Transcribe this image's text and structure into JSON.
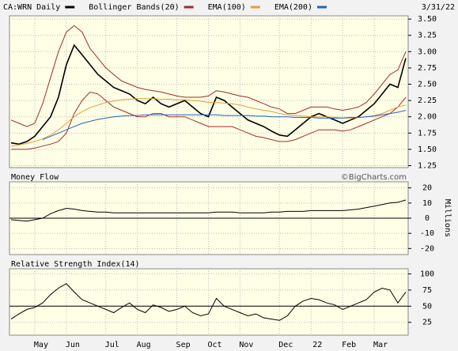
{
  "chart_data": [
    {
      "type": "line",
      "date": "3/31/22",
      "note": "©BigCharts.com",
      "categories": [
        null,
        null,
        null,
        "May",
        null,
        null,
        null,
        "Jun",
        null,
        null,
        null,
        null,
        "Jul",
        null,
        null,
        null,
        "Aug",
        null,
        null,
        null,
        null,
        "Sep",
        null,
        null,
        null,
        "Oct",
        null,
        null,
        null,
        "Nov",
        null,
        null,
        null,
        null,
        "Dec",
        null,
        null,
        null,
        "22",
        null,
        null,
        null,
        "Feb",
        null,
        null,
        null,
        "Mar",
        null,
        null,
        null,
        null
      ],
      "ylim": [
        1.22,
        3.55
      ],
      "yticks": [
        {
          "value": 1.25,
          "label": "1.25"
        },
        {
          "value": 1.5,
          "label": "1.50"
        },
        {
          "value": 1.75,
          "label": "1.75"
        },
        {
          "value": 2,
          "label": "2.00"
        },
        {
          "value": 2.25,
          "label": "2.25"
        },
        {
          "value": 2.5,
          "label": "2.50"
        },
        {
          "value": 2.75,
          "label": "2.75"
        },
        {
          "value": 3,
          "label": "3.00"
        },
        {
          "value": 3.25,
          "label": "3.25"
        },
        {
          "value": 3.5,
          "label": "3.50"
        }
      ],
      "grid": true,
      "series": [
        {
          "name": "CA:WRN Daily",
          "color": "#000000",
          "values": [
            1.6,
            1.58,
            1.62,
            1.7,
            1.85,
            2.0,
            2.3,
            2.8,
            3.1,
            2.95,
            2.8,
            2.65,
            2.55,
            2.45,
            2.4,
            2.35,
            2.25,
            2.2,
            2.3,
            2.2,
            2.15,
            2.2,
            2.25,
            2.15,
            2.05,
            2.0,
            2.3,
            2.25,
            2.15,
            2.05,
            1.95,
            1.9,
            1.85,
            1.78,
            1.72,
            1.7,
            1.8,
            1.9,
            2.0,
            2.05,
            2.0,
            1.95,
            1.9,
            1.95,
            2.0,
            2.1,
            2.2,
            2.35,
            2.5,
            2.45,
            2.9
          ]
        },
        {
          "name": "Bollinger Bands(20)",
          "color": "#a52a2a",
          "values": [
            1.95,
            1.9,
            1.85,
            1.9,
            2.2,
            2.6,
            3.0,
            3.3,
            3.4,
            3.3,
            3.05,
            2.9,
            2.75,
            2.65,
            2.55,
            2.5,
            2.45,
            2.42,
            2.4,
            2.38,
            2.35,
            2.32,
            2.3,
            2.3,
            2.3,
            2.32,
            2.4,
            2.38,
            2.35,
            2.32,
            2.3,
            2.25,
            2.2,
            2.15,
            2.12,
            2.05,
            2.05,
            2.1,
            2.15,
            2.15,
            2.15,
            2.12,
            2.1,
            2.12,
            2.15,
            2.22,
            2.35,
            2.5,
            2.65,
            2.72,
            3.0
          ],
          "values_lower": [
            1.5,
            1.5,
            1.5,
            1.52,
            1.55,
            1.58,
            1.62,
            1.75,
            2.05,
            2.25,
            2.38,
            2.35,
            2.25,
            2.15,
            2.1,
            2.05,
            2.0,
            2.0,
            2.05,
            2.05,
            2.0,
            2.0,
            2.0,
            1.95,
            1.9,
            1.85,
            1.85,
            1.85,
            1.85,
            1.8,
            1.75,
            1.7,
            1.68,
            1.65,
            1.62,
            1.62,
            1.65,
            1.7,
            1.75,
            1.8,
            1.8,
            1.8,
            1.78,
            1.8,
            1.85,
            1.9,
            1.95,
            2.0,
            2.05,
            2.15,
            2.3
          ]
        },
        {
          "name": "EMA(100)",
          "color": "#e0a040",
          "values": [
            1.55,
            1.57,
            1.59,
            1.62,
            1.66,
            1.72,
            1.8,
            1.9,
            2.0,
            2.08,
            2.14,
            2.18,
            2.22,
            2.24,
            2.26,
            2.27,
            2.28,
            2.28,
            2.28,
            2.27,
            2.27,
            2.26,
            2.26,
            2.25,
            2.24,
            2.22,
            2.22,
            2.21,
            2.2,
            2.18,
            2.15,
            2.12,
            2.1,
            2.08,
            2.05,
            2.03,
            2.02,
            2.01,
            2.0,
            2.0,
            2.0,
            1.99,
            1.98,
            1.98,
            1.99,
            2.0,
            2.02,
            2.05,
            2.1,
            2.15,
            2.18
          ]
        },
        {
          "name": "EMA(200)",
          "color": "#1e64c8",
          "values": [
            null,
            null,
            null,
            null,
            1.65,
            1.7,
            1.75,
            1.8,
            1.85,
            1.9,
            1.93,
            1.96,
            1.98,
            2.0,
            2.01,
            2.02,
            2.02,
            2.03,
            2.03,
            2.03,
            2.03,
            2.03,
            2.03,
            2.03,
            2.03,
            2.03,
            2.03,
            2.02,
            2.02,
            2.02,
            2.02,
            2.01,
            2.01,
            2.0,
            2.0,
            2.0,
            1.99,
            1.99,
            1.99,
            1.98,
            1.98,
            1.98,
            1.98,
            1.99,
            1.99,
            2.0,
            2.01,
            2.03,
            2.05,
            2.07,
            2.1
          ]
        }
      ]
    },
    {
      "type": "line",
      "title": "Money Flow",
      "ylabel": "Millions",
      "ylim": [
        -24,
        24
      ],
      "yticks": [
        -20,
        -10,
        0,
        10,
        20
      ],
      "grid": true,
      "reference_line": 0,
      "series": [
        {
          "name": "Money Flow",
          "color": "#000000",
          "values": [
            -1,
            -1.5,
            -2,
            -1,
            0,
            3,
            5,
            6.5,
            6,
            5,
            4.5,
            4,
            4,
            3.5,
            3.5,
            3.5,
            3.5,
            3.5,
            3.5,
            3.5,
            3.5,
            3.5,
            3.5,
            3.5,
            3.5,
            3.5,
            4,
            4,
            4,
            3.5,
            3.5,
            3.5,
            3.5,
            4,
            4,
            4.5,
            4.5,
            4.5,
            5,
            5,
            5,
            5,
            5,
            5.5,
            6,
            7,
            8,
            9,
            10,
            10.5,
            12
          ]
        }
      ]
    },
    {
      "type": "line",
      "title": "Relative Strength Index(14)",
      "ylim": [
        5,
        108
      ],
      "yticks": [
        25,
        50,
        75,
        100
      ],
      "grid": true,
      "reference_line": 50,
      "series": [
        {
          "name": "Relative Strength Index(14)",
          "color": "#000000",
          "values": [
            30,
            38,
            45,
            48,
            55,
            68,
            78,
            85,
            72,
            60,
            55,
            50,
            45,
            40,
            48,
            55,
            45,
            40,
            52,
            48,
            42,
            45,
            50,
            40,
            35,
            38,
            62,
            50,
            45,
            40,
            35,
            38,
            32,
            30,
            28,
            35,
            50,
            58,
            62,
            60,
            55,
            52,
            45,
            50,
            55,
            60,
            72,
            78,
            75,
            55,
            72
          ]
        }
      ]
    }
  ]
}
